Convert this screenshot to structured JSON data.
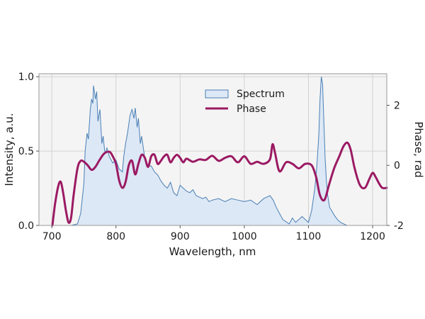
{
  "chart_data": {
    "type": "area",
    "xlabel": "Wavelength, nm",
    "ylabel": "Intensity, a.u.",
    "y2label": "Phase, rad",
    "xlim": [
      680,
      1222
    ],
    "ylim": [
      0,
      1.02
    ],
    "y2lim": [
      -2.0,
      3.05
    ],
    "x_ticks": [
      "700",
      "800",
      "900",
      "1000",
      "1100",
      "1200"
    ],
    "y_ticks": [
      "0.0",
      "0.5",
      "1.0"
    ],
    "y2_ticks": [
      "-2",
      "0",
      "2"
    ],
    "grid": true,
    "legend_position": "top-center",
    "series": [
      {
        "name": "Spectrum",
        "axis": "left",
        "style": "filled-area",
        "color": "#4a7fb5",
        "fill": "#dde8f6",
        "x": [
          700,
          720,
          730,
          740,
          745,
          750,
          752,
          755,
          757,
          760,
          762,
          764,
          765,
          768,
          770,
          772,
          775,
          778,
          780,
          783,
          786,
          790,
          795,
          800,
          805,
          810,
          812,
          815,
          818,
          820,
          822,
          825,
          828,
          830,
          833,
          835,
          838,
          840,
          845,
          850,
          855,
          860,
          865,
          870,
          875,
          880,
          885,
          890,
          895,
          900,
          905,
          910,
          915,
          920,
          925,
          930,
          935,
          940,
          945,
          950,
          960,
          970,
          980,
          990,
          1000,
          1010,
          1020,
          1030,
          1040,
          1045,
          1050,
          1060,
          1070,
          1075,
          1080,
          1090,
          1100,
          1105,
          1110,
          1113,
          1116,
          1118,
          1120,
          1122,
          1124,
          1126,
          1128,
          1130,
          1133,
          1136,
          1140,
          1145,
          1150,
          1160,
          1170,
          1180,
          1190,
          1200,
          1210,
          1222
        ],
        "values": [
          0.0,
          0.0,
          0.0,
          0.01,
          0.08,
          0.28,
          0.5,
          0.62,
          0.58,
          0.78,
          0.85,
          0.82,
          0.94,
          0.85,
          0.9,
          0.7,
          0.78,
          0.55,
          0.6,
          0.48,
          0.52,
          0.46,
          0.42,
          0.44,
          0.38,
          0.36,
          0.46,
          0.55,
          0.62,
          0.68,
          0.74,
          0.78,
          0.72,
          0.79,
          0.66,
          0.72,
          0.55,
          0.6,
          0.45,
          0.4,
          0.4,
          0.36,
          0.34,
          0.3,
          0.27,
          0.25,
          0.29,
          0.22,
          0.2,
          0.27,
          0.25,
          0.23,
          0.22,
          0.24,
          0.2,
          0.19,
          0.18,
          0.19,
          0.16,
          0.17,
          0.18,
          0.16,
          0.18,
          0.17,
          0.16,
          0.17,
          0.14,
          0.18,
          0.2,
          0.17,
          0.12,
          0.04,
          0.01,
          0.05,
          0.02,
          0.06,
          0.02,
          0.1,
          0.25,
          0.4,
          0.6,
          0.85,
          1.0,
          0.95,
          0.7,
          0.45,
          0.3,
          0.2,
          0.12,
          0.1,
          0.07,
          0.04,
          0.02,
          0.0,
          0.0,
          0.0,
          0.0,
          0.0,
          0.0,
          0.0
        ]
      },
      {
        "name": "Phase",
        "axis": "right",
        "style": "line",
        "color": "#9b1a63",
        "x": [
          701,
          705,
          710,
          714,
          718,
          722,
          726,
          730,
          734,
          740,
          745,
          750,
          756,
          762,
          768,
          775,
          782,
          790,
          795,
          800,
          805,
          810,
          815,
          820,
          825,
          830,
          835,
          840,
          845,
          850,
          855,
          860,
          865,
          870,
          875,
          880,
          885,
          890,
          895,
          900,
          905,
          910,
          920,
          930,
          940,
          950,
          960,
          970,
          980,
          990,
          1000,
          1010,
          1020,
          1030,
          1040,
          1044,
          1048,
          1055,
          1065,
          1075,
          1085,
          1095,
          1105,
          1112,
          1118,
          1125,
          1132,
          1140,
          1148,
          1155,
          1161,
          1166,
          1172,
          1180,
          1188,
          1195,
          1200,
          1205,
          1210,
          1215,
          1222
        ],
        "values": [
          -2.0,
          -1.3,
          -0.7,
          -0.55,
          -0.95,
          -1.5,
          -1.9,
          -1.75,
          -1.0,
          -0.1,
          0.15,
          0.12,
          0.0,
          -0.15,
          -0.05,
          0.2,
          0.4,
          0.45,
          0.3,
          0.05,
          -0.5,
          -0.75,
          -0.55,
          0.0,
          0.15,
          -0.3,
          0.05,
          0.35,
          0.25,
          -0.05,
          0.3,
          0.35,
          0.05,
          0.15,
          0.3,
          0.35,
          0.1,
          0.25,
          0.35,
          0.25,
          0.1,
          0.22,
          0.12,
          0.2,
          0.18,
          0.32,
          0.15,
          0.25,
          0.3,
          0.1,
          0.3,
          0.05,
          0.12,
          0.05,
          0.2,
          0.7,
          0.4,
          -0.2,
          0.1,
          0.05,
          -0.1,
          0.05,
          0.0,
          -0.4,
          -1.0,
          -1.15,
          -0.65,
          -0.1,
          0.3,
          0.65,
          0.75,
          0.5,
          -0.1,
          -0.65,
          -0.75,
          -0.45,
          -0.25,
          -0.4,
          -0.6,
          -0.75,
          -0.75
        ]
      }
    ]
  }
}
